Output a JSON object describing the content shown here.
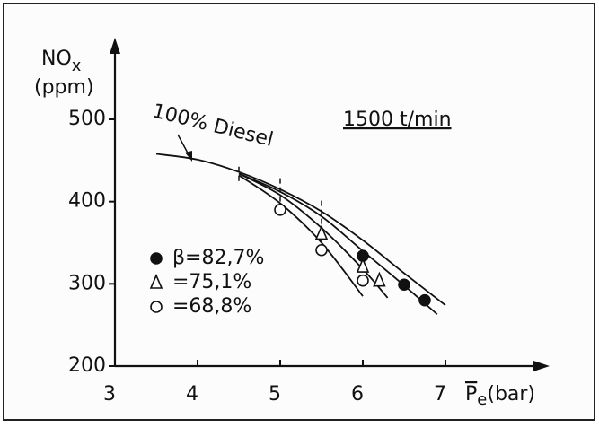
{
  "chart_data": {
    "type": "scatter",
    "title": "1500 t/min",
    "ylabel": {
      "main": "NO",
      "sub": "x",
      "unit": "(ppm)"
    },
    "xlabel": {
      "main": "P",
      "sub": "e",
      "unit": "(bar)"
    },
    "annotation": "100% Diesel",
    "xlim": [
      3,
      7
    ],
    "ylim": [
      200,
      500
    ],
    "xticks": [
      3,
      4,
      5,
      6,
      7
    ],
    "yticks": [
      200,
      300,
      400,
      500
    ],
    "color": "#111111",
    "series": [
      {
        "name": "β=82,7%",
        "marker": "filled-circle",
        "x": [
          6,
          6.5,
          6.75
        ],
        "values": [
          334,
          299,
          280
        ]
      },
      {
        "name": "=75,1%",
        "marker": "triangle",
        "x": [
          5.5,
          6,
          6.2
        ],
        "values": [
          361,
          321,
          304
        ]
      },
      {
        "name": "=68,8%",
        "marker": "open-circle",
        "x": [
          5,
          5.5,
          6
        ],
        "values": [
          390,
          341,
          304
        ]
      }
    ],
    "curves": [
      {
        "x": [
          3.5,
          4,
          4.5,
          5,
          5.5,
          6,
          6.5,
          7
        ],
        "values": [
          458,
          451,
          436,
          415,
          388,
          353,
          313,
          274
        ]
      },
      {
        "x": [
          4.5,
          5,
          5.5,
          6,
          6.5,
          6.9
        ],
        "values": [
          434,
          412,
          382,
          340,
          298,
          263
        ]
      },
      {
        "x": [
          4.5,
          5,
          5.5,
          6,
          6.3
        ],
        "values": [
          434,
          408,
          368,
          318,
          283
        ]
      },
      {
        "x": [
          4.5,
          5,
          5.5,
          6
        ],
        "values": [
          432,
          398,
          350,
          285
        ]
      }
    ],
    "vlines": [
      {
        "x": 4.5,
        "y": [
          425,
          445
        ]
      },
      {
        "x": 5,
        "y": [
          400,
          432
        ]
      },
      {
        "x": 5.5,
        "y": [
          340,
          405
        ]
      }
    ]
  }
}
